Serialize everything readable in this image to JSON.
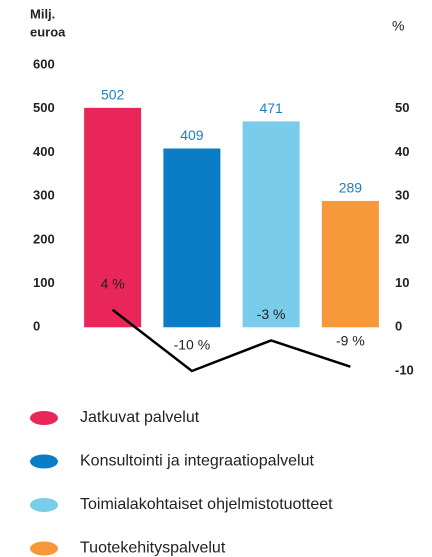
{
  "chart_data": {
    "type": "bar",
    "ylabel": [
      "Milj.",
      "euroa"
    ],
    "y2label": "%",
    "categories": [
      "Jatkuvat palvelut",
      "Konsultointi ja integraatiopalvelut",
      "Toimialakohtaiset ohjelmistotuotteet",
      "Tuotekehityspalvelut"
    ],
    "values": [
      502,
      409,
      471,
      289
    ],
    "colors": [
      "#e8265a",
      "#0b7dc7",
      "#79cdea",
      "#f7993a"
    ],
    "value_label_color": "#1f7dbf",
    "ylim": [
      -100,
      600
    ],
    "yticks": [
      0,
      100,
      200,
      300,
      400,
      500,
      600
    ],
    "y2lim": [
      -10,
      60
    ],
    "y2ticks": [
      -10,
      0,
      10,
      20,
      30,
      40,
      50
    ],
    "line_series": [
      {
        "axis": "y2",
        "color": "#000000",
        "values": [
          4,
          -10,
          -3,
          -9
        ],
        "value_labels": [
          "4 %",
          "-10 %",
          "-3 %",
          "-9 %"
        ]
      }
    ]
  }
}
